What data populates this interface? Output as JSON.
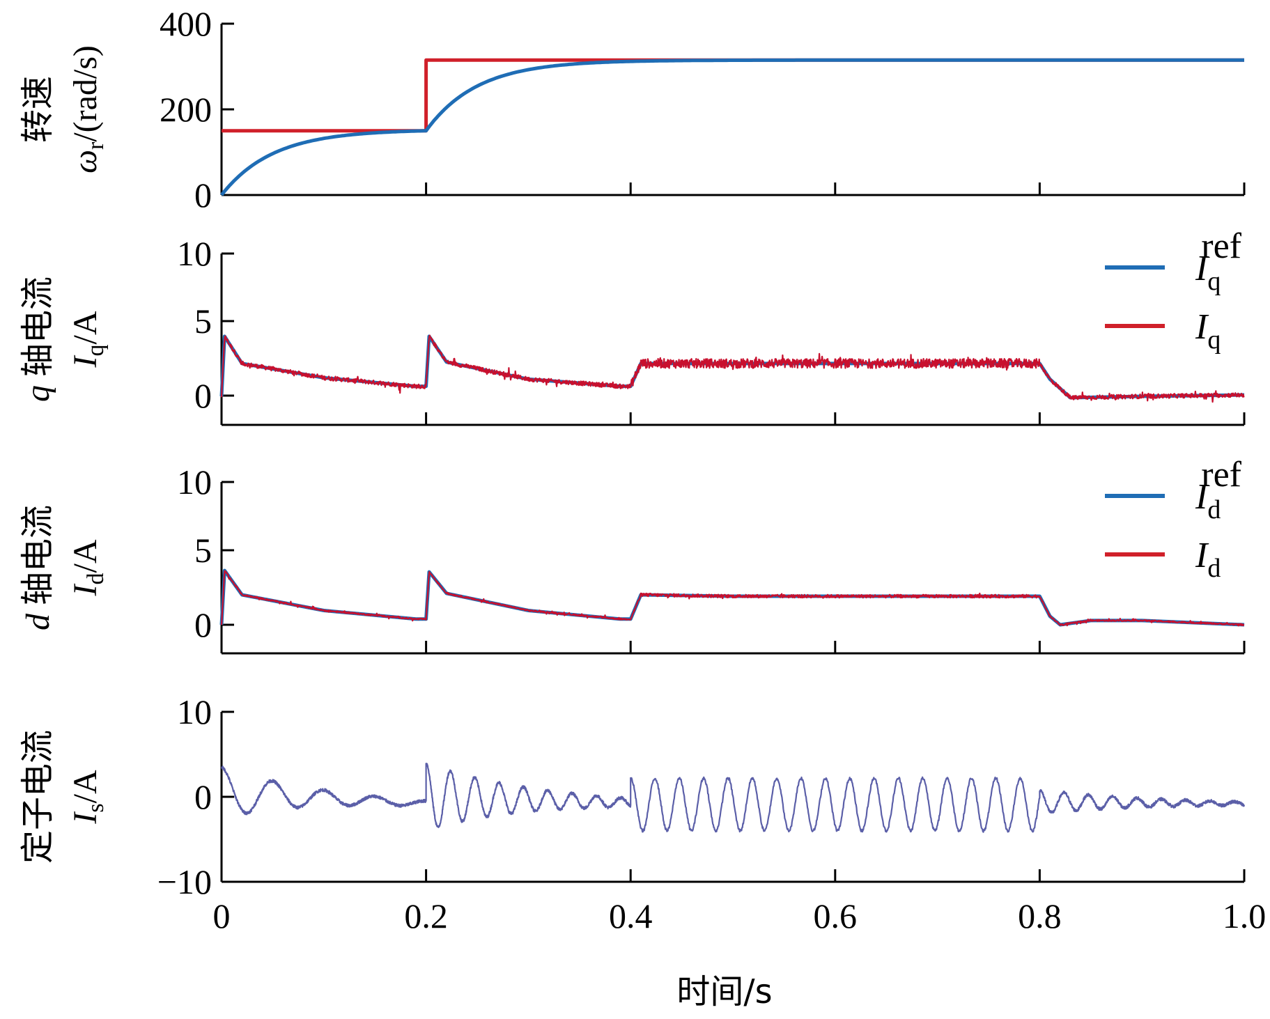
{
  "chart_data": [
    {
      "type": "line",
      "ylabel": {
        "main": "转速",
        "sym": "ω",
        "sub": "r",
        "unit": "/(rad/s)"
      },
      "ylim": [
        0,
        400
      ],
      "yticks": [
        "400",
        "200",
        "0"
      ],
      "xlim": [
        0,
        1
      ],
      "series": [
        {
          "key": "ref",
          "color": "#d0202a",
          "x": [
            0,
            0.2,
            0.2,
            1.0
          ],
          "y": [
            150,
            150,
            315,
            315
          ]
        },
        {
          "key": "actual",
          "color": "#1f6db5",
          "x": [
            0,
            0.02,
            0.05,
            0.1,
            0.15,
            0.2,
            0.22,
            0.25,
            0.3,
            0.35,
            0.4,
            1.0
          ],
          "y": [
            0,
            45,
            88,
            125,
            143,
            150,
            205,
            250,
            290,
            310,
            315,
            315
          ]
        }
      ]
    },
    {
      "type": "line",
      "ylabel": {
        "sym": "q",
        "main": "轴电流",
        "isym": "I",
        "sub": "q",
        "unit": "/A"
      },
      "ylim": [
        -2,
        10
      ],
      "yticks": [
        "10",
        "5",
        "0"
      ],
      "xlim": [
        0,
        1
      ],
      "legend": [
        {
          "sym": "I",
          "sub": "q",
          "sup": "ref",
          "color": "#1f6db5"
        },
        {
          "sym": "I",
          "sub": "q",
          "sup": "",
          "color": "#d0202a"
        }
      ],
      "series": [
        {
          "key": "ref",
          "color": "#1f6db5",
          "x": [
            0,
            0.003,
            0.02,
            0.1,
            0.19,
            0.2,
            0.203,
            0.22,
            0.3,
            0.39,
            0.4,
            0.41,
            0.5,
            0.6,
            0.7,
            0.79,
            0.8,
            0.81,
            0.83,
            0.9,
            1.0
          ],
          "y": [
            0,
            4.2,
            2.3,
            1.3,
            0.7,
            0.7,
            4.2,
            2.4,
            1.2,
            0.7,
            0.7,
            2.3,
            2.3,
            2.3,
            2.3,
            2.3,
            2.3,
            1.2,
            -0.1,
            0.0,
            0.1
          ]
        },
        {
          "key": "actual",
          "color": "#c8102e",
          "noisy": true,
          "x": [
            0,
            0.003,
            0.02,
            0.1,
            0.19,
            0.2,
            0.203,
            0.22,
            0.3,
            0.39,
            0.4,
            0.41,
            0.5,
            0.6,
            0.7,
            0.79,
            0.8,
            0.81,
            0.83,
            0.9,
            1.0
          ],
          "y": [
            0,
            4.2,
            2.3,
            1.3,
            0.7,
            0.7,
            4.2,
            2.4,
            1.2,
            0.7,
            0.7,
            2.3,
            2.3,
            2.3,
            2.3,
            2.3,
            2.3,
            1.2,
            -0.1,
            0.0,
            0.1
          ]
        }
      ]
    },
    {
      "type": "line",
      "ylabel": {
        "sym": "d",
        "main": "轴电流",
        "isym": "I",
        "sub": "d",
        "unit": "/A"
      },
      "ylim": [
        -2,
        10
      ],
      "yticks": [
        "10",
        "5",
        "0"
      ],
      "xlim": [
        0,
        1
      ],
      "legend": [
        {
          "sym": "I",
          "sub": "d",
          "sup": "ref",
          "color": "#1f6db5"
        },
        {
          "sym": "I",
          "sub": "d",
          "sup": "",
          "color": "#d0202a"
        }
      ],
      "series": [
        {
          "key": "ref",
          "color": "#1f6db5",
          "x": [
            0,
            0.003,
            0.02,
            0.1,
            0.19,
            0.2,
            0.203,
            0.22,
            0.3,
            0.39,
            0.4,
            0.41,
            0.5,
            0.6,
            0.7,
            0.79,
            0.8,
            0.81,
            0.82,
            0.85,
            0.9,
            1.0
          ],
          "y": [
            0,
            3.8,
            2.1,
            1.0,
            0.4,
            0.4,
            3.7,
            2.2,
            1.0,
            0.4,
            0.4,
            2.1,
            2.0,
            2.0,
            2.0,
            2.0,
            2.0,
            0.6,
            0.0,
            0.3,
            0.3,
            0.0
          ]
        },
        {
          "key": "actual",
          "color": "#c8102e",
          "noisy": true,
          "noise": 0.05,
          "x": [
            0,
            0.003,
            0.02,
            0.1,
            0.19,
            0.2,
            0.203,
            0.22,
            0.3,
            0.39,
            0.4,
            0.41,
            0.5,
            0.6,
            0.7,
            0.79,
            0.8,
            0.81,
            0.82,
            0.85,
            0.9,
            1.0
          ],
          "y": [
            0,
            3.8,
            2.1,
            1.0,
            0.4,
            0.4,
            3.7,
            2.2,
            1.0,
            0.4,
            0.4,
            2.1,
            2.0,
            2.0,
            2.0,
            2.0,
            2.0,
            0.6,
            0.0,
            0.3,
            0.3,
            0.0
          ]
        }
      ]
    },
    {
      "type": "line",
      "ylabel": {
        "main": "定子电流",
        "isym": "I",
        "sub": "s",
        "unit": "/A"
      },
      "ylim": [
        -10,
        10
      ],
      "yticks": [
        "10",
        "0",
        "−10"
      ],
      "xlim": [
        0,
        1
      ],
      "xticks": [
        "0",
        "0.2",
        "0.4",
        "0.6",
        "0.8",
        "1.0"
      ],
      "xlabel": "时间/s",
      "series": [
        {
          "key": "stator",
          "color": "#5b5fa8",
          "oscillating": true,
          "segments": [
            {
              "x0": 0.0,
              "x1": 0.2,
              "amp0": 3.0,
              "amp1": 0.3,
              "freq": 20,
              "offset0": 0.5,
              "offset1": -0.8
            },
            {
              "x0": 0.2,
              "x1": 0.4,
              "amp0": 4.0,
              "amp1": 0.5,
              "freq": 42,
              "offset0": 0.0,
              "offset1": -0.7
            },
            {
              "x0": 0.4,
              "x1": 0.8,
              "amp0": 3.1,
              "amp1": 3.1,
              "freq": 42,
              "offset0": -0.9,
              "offset1": -0.9
            },
            {
              "x0": 0.8,
              "x1": 1.0,
              "amp0": 1.4,
              "amp1": 0.2,
              "freq": 42,
              "offset0": -0.6,
              "offset1": -0.8
            }
          ]
        }
      ]
    }
  ]
}
